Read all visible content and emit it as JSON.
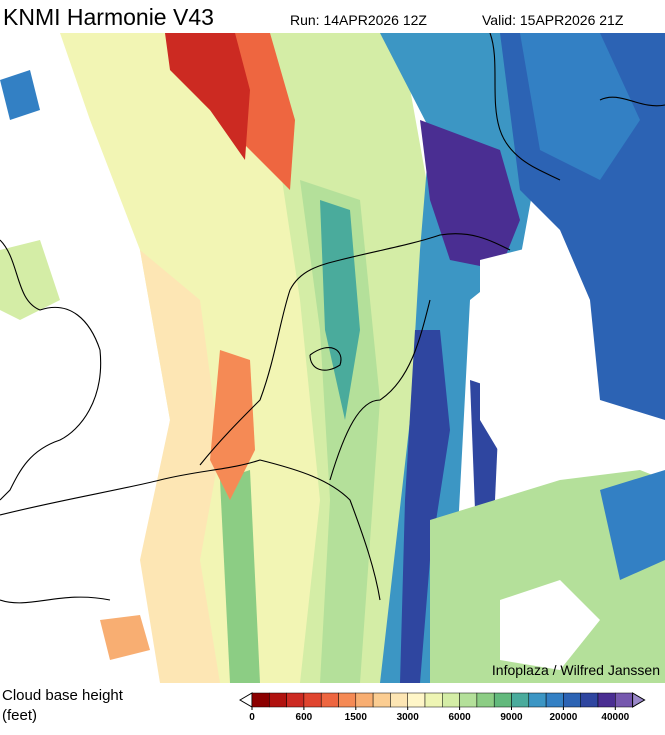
{
  "header": {
    "title": "KNMI Harmonie V43",
    "run": "Run: 14APR2026 12Z",
    "valid": "Valid: 15APR2026 21Z"
  },
  "map": {
    "credit": "Infoplaza / Wilfred Janssen"
  },
  "legend": {
    "title_lines": [
      "Cloud base height",
      "(feet)"
    ],
    "colors": [
      "#8b0000",
      "#b0120f",
      "#cc2a22",
      "#e0452f",
      "#ee6640",
      "#f58a55",
      "#f8ae72",
      "#fbcd92",
      "#fde6b4",
      "#fff6c8",
      "#eef5b4",
      "#d4eda6",
      "#b4e09a",
      "#8ccd84",
      "#62b97c",
      "#4aab9c",
      "#3c96c4",
      "#3380c4",
      "#2c63b4",
      "#2f46a0",
      "#4a2e92",
      "#7658ae"
    ],
    "ticks": [
      0,
      600,
      1500,
      3000,
      6000,
      9000,
      20000,
      40000
    ]
  }
}
